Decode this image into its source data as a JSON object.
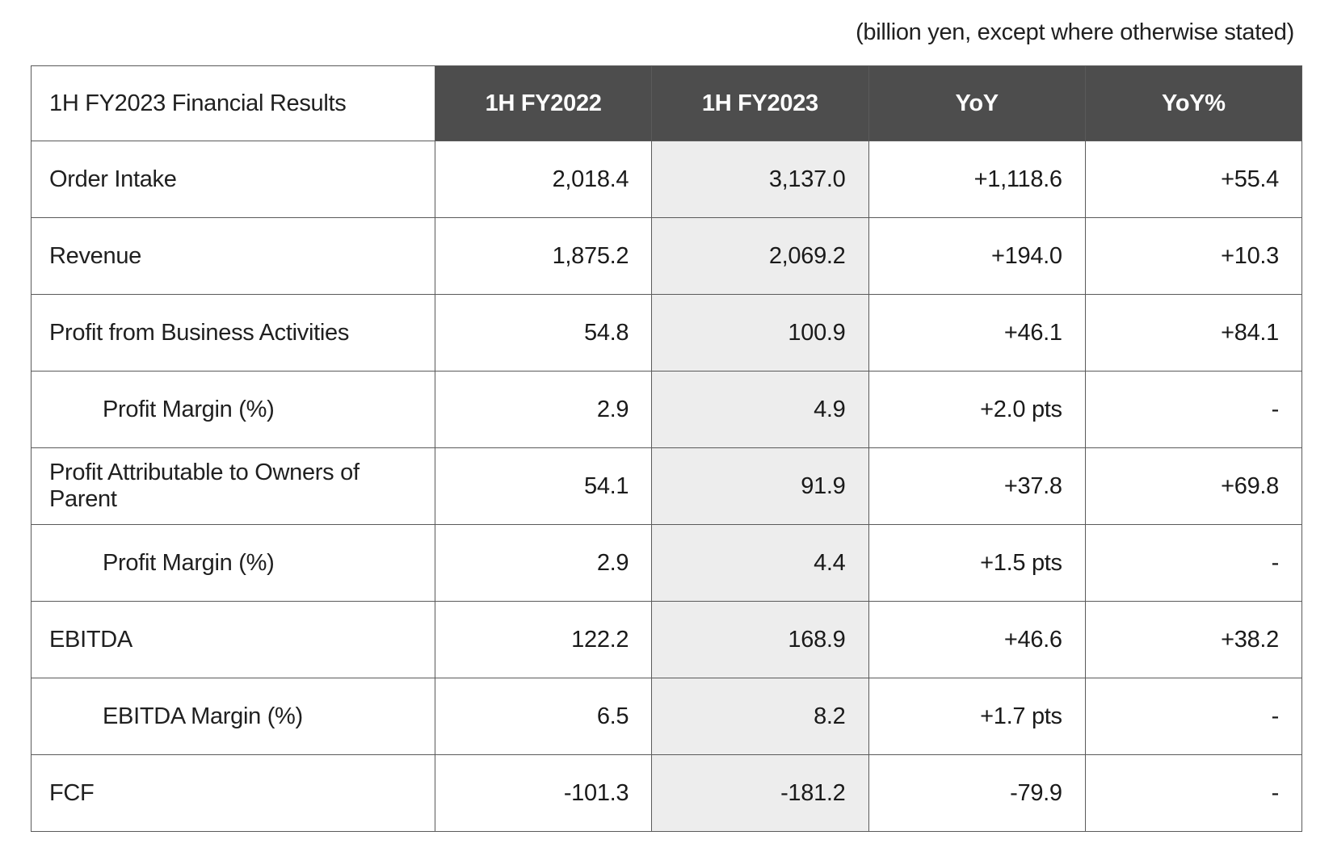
{
  "units_note": "(billion yen, except where otherwise stated)",
  "headers": {
    "rowhead": "1H FY2023 Financial Results",
    "col1": "1H FY2022",
    "col2": "1H FY2023",
    "col3": "YoY",
    "col4": "YoY%"
  },
  "highlight_column_index": 1,
  "colors": {
    "header_bg": "#4d4d4d",
    "header_fg": "#ffffff",
    "border": "#5a5a5a",
    "highlight_bg": "#ededed",
    "text": "#202020",
    "background": "#ffffff"
  },
  "font_size_pt": 22,
  "rows": [
    {
      "label": "Order Intake",
      "indent": 0,
      "values": [
        "2,018.4",
        "3,137.0",
        "+1,118.6",
        "+55.4"
      ]
    },
    {
      "label": "Revenue",
      "indent": 0,
      "values": [
        "1,875.2",
        "2,069.2",
        "+194.0",
        "+10.3"
      ]
    },
    {
      "label": "Profit from Business Activities",
      "indent": 0,
      "values": [
        "54.8",
        "100.9",
        "+46.1",
        "+84.1"
      ]
    },
    {
      "label": "Profit Margin (%)",
      "indent": 1,
      "values": [
        "2.9",
        "4.9",
        "+2.0 pts",
        "-"
      ]
    },
    {
      "label": "Profit Attributable to Owners of Parent",
      "indent": 0,
      "values": [
        "54.1",
        "91.9",
        "+37.8",
        "+69.8"
      ]
    },
    {
      "label": "Profit Margin (%)",
      "indent": 1,
      "values": [
        "2.9",
        "4.4",
        "+1.5 pts",
        "-"
      ]
    },
    {
      "label": "EBITDA",
      "indent": 0,
      "values": [
        "122.2",
        "168.9",
        "+46.6",
        "+38.2"
      ]
    },
    {
      "label": "EBITDA Margin (%)",
      "indent": 1,
      "values": [
        "6.5",
        "8.2",
        "+1.7 pts",
        "-"
      ]
    },
    {
      "label": "FCF",
      "indent": 0,
      "values": [
        "-101.3",
        "-181.2",
        "-79.9",
        "-"
      ]
    }
  ]
}
